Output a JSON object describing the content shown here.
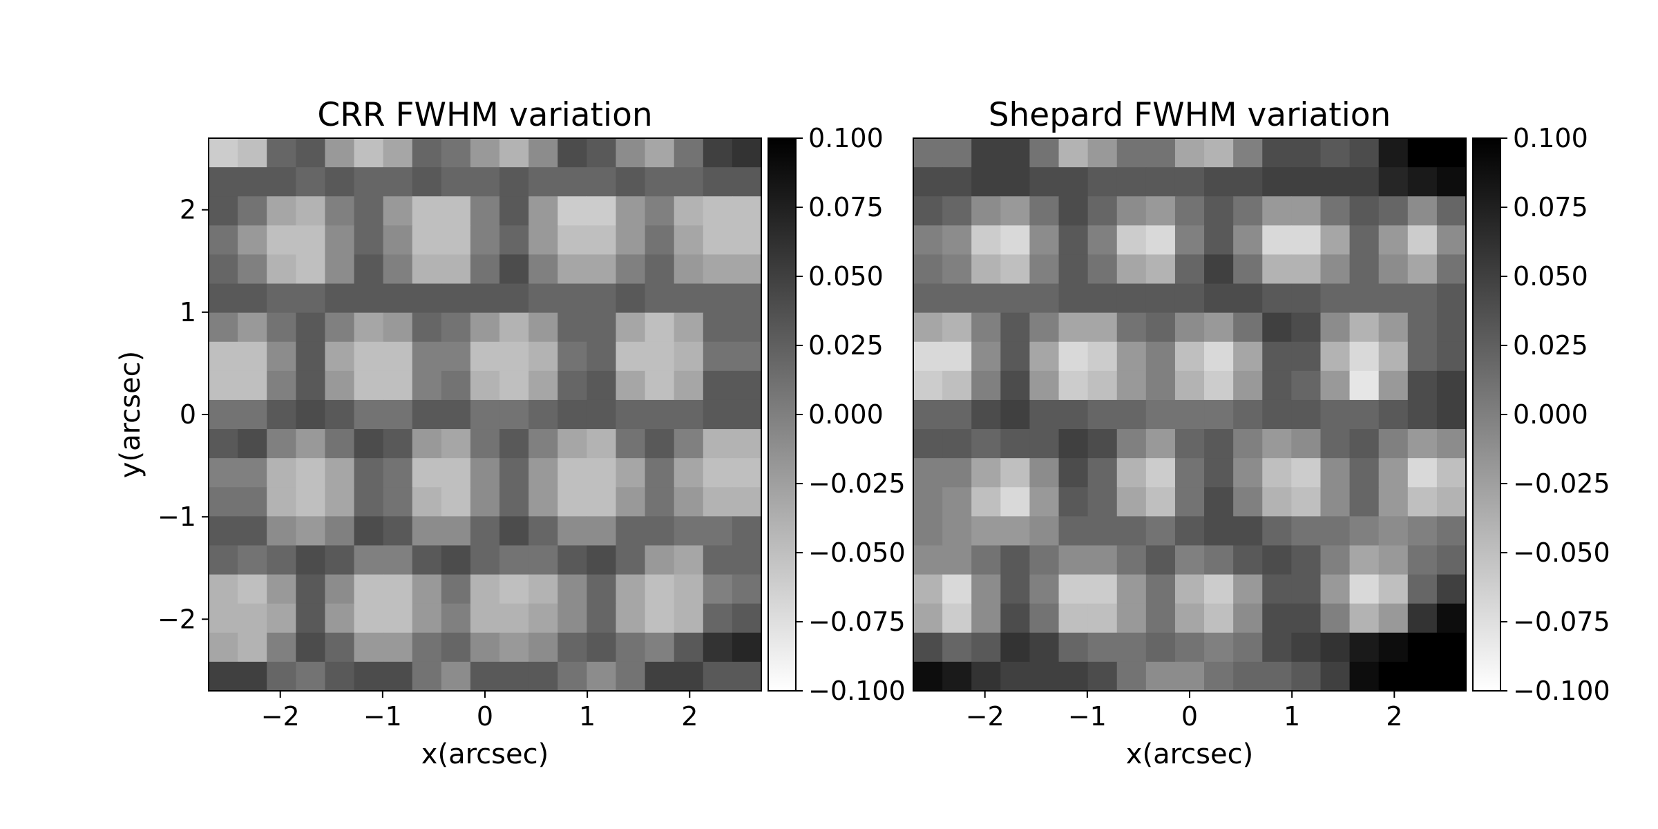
{
  "chart_data": [
    {
      "type": "heatmap",
      "title": "CRR FWHM variation",
      "xlabel": "x(arcsec)",
      "ylabel": "y(arcsec)",
      "xlim": [
        -2.7,
        2.7
      ],
      "ylim": [
        -2.7,
        2.7
      ],
      "xticks": [
        -2,
        -1,
        0,
        1,
        2
      ],
      "yticks": [
        -2,
        -1,
        0,
        1,
        2
      ],
      "xtick_labels": [
        "−2",
        "−1",
        "0",
        "1",
        "2"
      ],
      "ytick_labels": [
        "−2",
        "−1",
        "0",
        "1",
        "2"
      ],
      "colorbar": {
        "cmap": "gray_r",
        "vmin": -0.1,
        "vmax": 0.1,
        "ticks": [
          0.1,
          0.075,
          0.05,
          0.025,
          0.0,
          -0.025,
          -0.05,
          -0.075,
          -0.1
        ],
        "tick_labels": [
          "0.100",
          "0.075",
          "0.050",
          "0.025",
          "0.000",
          "−0.025",
          "−0.050",
          "−0.075",
          "−0.100"
        ]
      },
      "grid_rows_top_to_bottom": [
        [
          -0.06,
          -0.05,
          0.02,
          0.03,
          -0.02,
          -0.05,
          -0.03,
          0.02,
          0.01,
          -0.02,
          -0.04,
          -0.01,
          0.04,
          0.03,
          -0.01,
          -0.03,
          0.01,
          0.05,
          0.06
        ],
        [
          0.03,
          0.03,
          0.03,
          0.02,
          0.03,
          0.02,
          0.02,
          0.03,
          0.02,
          0.02,
          0.03,
          0.02,
          0.02,
          0.02,
          0.03,
          0.02,
          0.02,
          0.03,
          0.03
        ],
        [
          0.03,
          0.01,
          -0.03,
          -0.04,
          0.0,
          0.02,
          -0.02,
          -0.05,
          -0.05,
          0.0,
          0.03,
          -0.02,
          -0.06,
          -0.06,
          -0.02,
          0.0,
          -0.04,
          -0.05,
          -0.05
        ],
        [
          0.01,
          -0.02,
          -0.05,
          -0.05,
          -0.01,
          0.02,
          -0.01,
          -0.05,
          -0.05,
          0.0,
          0.02,
          -0.02,
          -0.05,
          -0.05,
          -0.02,
          0.01,
          -0.03,
          -0.05,
          -0.05
        ],
        [
          0.02,
          0.0,
          -0.04,
          -0.05,
          -0.01,
          0.03,
          0.0,
          -0.04,
          -0.04,
          0.01,
          0.04,
          0.0,
          -0.03,
          -0.03,
          0.0,
          0.02,
          -0.02,
          -0.03,
          -0.03
        ],
        [
          0.03,
          0.03,
          0.02,
          0.02,
          0.03,
          0.03,
          0.03,
          0.03,
          0.03,
          0.03,
          0.03,
          0.02,
          0.02,
          0.02,
          0.03,
          0.02,
          0.02,
          0.02,
          0.02
        ],
        [
          0.0,
          -0.02,
          0.01,
          0.03,
          0.0,
          -0.03,
          -0.02,
          0.02,
          0.01,
          -0.02,
          -0.04,
          -0.02,
          0.02,
          0.02,
          -0.03,
          -0.05,
          -0.03,
          0.02,
          0.02
        ],
        [
          -0.05,
          -0.05,
          -0.01,
          0.03,
          -0.03,
          -0.05,
          -0.05,
          0.0,
          0.0,
          -0.05,
          -0.05,
          -0.04,
          0.01,
          0.02,
          -0.05,
          -0.05,
          -0.04,
          0.01,
          0.01
        ],
        [
          -0.05,
          -0.05,
          0.0,
          0.03,
          -0.02,
          -0.05,
          -0.05,
          0.0,
          0.01,
          -0.04,
          -0.05,
          -0.03,
          0.02,
          0.03,
          -0.03,
          -0.05,
          -0.03,
          0.03,
          0.03
        ],
        [
          0.01,
          0.01,
          0.03,
          0.04,
          0.03,
          0.01,
          0.01,
          0.03,
          0.03,
          0.01,
          0.01,
          0.02,
          0.03,
          0.03,
          0.02,
          0.02,
          0.02,
          0.03,
          0.03
        ],
        [
          0.03,
          0.04,
          0.0,
          -0.02,
          0.01,
          0.04,
          0.03,
          -0.02,
          -0.03,
          0.01,
          0.03,
          0.0,
          -0.03,
          -0.04,
          0.01,
          0.03,
          0.0,
          -0.04,
          -0.04
        ],
        [
          0.0,
          0.0,
          -0.04,
          -0.05,
          -0.03,
          0.02,
          0.01,
          -0.05,
          -0.05,
          -0.01,
          0.02,
          -0.02,
          -0.05,
          -0.05,
          -0.03,
          0.01,
          -0.03,
          -0.05,
          -0.05
        ],
        [
          0.01,
          0.01,
          -0.04,
          -0.05,
          -0.03,
          0.02,
          0.01,
          -0.04,
          -0.05,
          -0.01,
          0.02,
          -0.02,
          -0.05,
          -0.05,
          -0.02,
          0.01,
          -0.02,
          -0.04,
          -0.04
        ],
        [
          0.03,
          0.03,
          -0.01,
          -0.02,
          0.0,
          0.04,
          0.03,
          -0.01,
          -0.01,
          0.02,
          0.04,
          0.02,
          -0.01,
          -0.01,
          0.02,
          0.02,
          0.01,
          0.01,
          0.02
        ],
        [
          0.02,
          0.01,
          0.02,
          0.04,
          0.03,
          0.0,
          0.0,
          0.03,
          0.04,
          0.02,
          0.01,
          0.01,
          0.03,
          0.04,
          0.02,
          -0.02,
          -0.03,
          0.02,
          0.02
        ],
        [
          -0.04,
          -0.05,
          -0.02,
          0.03,
          -0.01,
          -0.05,
          -0.05,
          -0.02,
          0.01,
          -0.04,
          -0.05,
          -0.04,
          -0.01,
          0.02,
          -0.03,
          -0.05,
          -0.04,
          0.0,
          0.01
        ],
        [
          -0.04,
          -0.04,
          -0.03,
          0.03,
          -0.02,
          -0.05,
          -0.05,
          -0.02,
          0.0,
          -0.04,
          -0.04,
          -0.03,
          -0.01,
          0.02,
          -0.03,
          -0.05,
          -0.04,
          0.02,
          0.03
        ],
        [
          -0.03,
          -0.04,
          0.0,
          0.04,
          0.02,
          -0.02,
          -0.02,
          0.01,
          0.02,
          -0.01,
          -0.02,
          -0.01,
          0.02,
          0.03,
          0.01,
          0.0,
          0.03,
          0.06,
          0.07
        ],
        [
          0.05,
          0.05,
          0.02,
          0.01,
          0.03,
          0.04,
          0.04,
          0.01,
          -0.01,
          0.03,
          0.03,
          0.03,
          0.01,
          -0.01,
          0.01,
          0.05,
          0.05,
          0.03,
          0.03
        ]
      ]
    },
    {
      "type": "heatmap",
      "title": "Shepard FWHM variation",
      "xlabel": "x(arcsec)",
      "ylabel": "",
      "xlim": [
        -2.7,
        2.7
      ],
      "ylim": [
        -2.7,
        2.7
      ],
      "xticks": [
        -2,
        -1,
        0,
        1,
        2
      ],
      "xtick_labels": [
        "−2",
        "−1",
        "0",
        "1",
        "2"
      ],
      "colorbar": {
        "cmap": "gray_r",
        "vmin": -0.1,
        "vmax": 0.1,
        "ticks": [
          0.1,
          0.075,
          0.05,
          0.025,
          0.0,
          -0.025,
          -0.05,
          -0.075,
          -0.1
        ],
        "tick_labels": [
          "0.100",
          "0.075",
          "0.050",
          "0.025",
          "0.000",
          "−0.025",
          "−0.050",
          "−0.075",
          "−0.100"
        ]
      },
      "grid_rows_top_to_bottom": [
        [
          0.01,
          0.01,
          0.05,
          0.05,
          0.01,
          -0.04,
          -0.02,
          0.01,
          0.01,
          -0.03,
          -0.04,
          0.0,
          0.04,
          0.04,
          0.03,
          0.04,
          0.08,
          0.1,
          0.1
        ],
        [
          0.04,
          0.04,
          0.05,
          0.05,
          0.04,
          0.04,
          0.03,
          0.03,
          0.03,
          0.03,
          0.04,
          0.04,
          0.05,
          0.05,
          0.05,
          0.05,
          0.07,
          0.08,
          0.09
        ],
        [
          0.03,
          0.02,
          -0.01,
          -0.02,
          0.01,
          0.04,
          0.02,
          -0.01,
          -0.02,
          0.01,
          0.03,
          0.01,
          -0.02,
          -0.02,
          0.01,
          0.03,
          0.02,
          -0.01,
          0.02
        ],
        [
          0.0,
          -0.01,
          -0.06,
          -0.07,
          -0.01,
          0.03,
          0.0,
          -0.06,
          -0.07,
          0.0,
          0.03,
          -0.01,
          -0.07,
          -0.07,
          -0.03,
          0.02,
          -0.02,
          -0.06,
          -0.01
        ],
        [
          0.01,
          0.0,
          -0.04,
          -0.05,
          0.0,
          0.03,
          0.01,
          -0.03,
          -0.04,
          0.02,
          0.05,
          0.01,
          -0.04,
          -0.04,
          -0.01,
          0.02,
          -0.01,
          -0.03,
          0.01
        ],
        [
          0.02,
          0.02,
          0.02,
          0.02,
          0.02,
          0.03,
          0.03,
          0.03,
          0.03,
          0.03,
          0.04,
          0.04,
          0.03,
          0.03,
          0.02,
          0.02,
          0.02,
          0.02,
          0.03
        ],
        [
          -0.03,
          -0.04,
          0.0,
          0.03,
          0.0,
          -0.03,
          -0.03,
          0.01,
          0.02,
          -0.01,
          -0.02,
          0.01,
          0.05,
          0.04,
          -0.01,
          -0.04,
          -0.02,
          0.02,
          0.03
        ],
        [
          -0.07,
          -0.07,
          -0.01,
          0.03,
          -0.03,
          -0.07,
          -0.06,
          -0.02,
          0.0,
          -0.05,
          -0.07,
          -0.03,
          0.03,
          0.03,
          -0.04,
          -0.07,
          -0.04,
          0.02,
          0.03
        ],
        [
          -0.06,
          -0.05,
          0.0,
          0.04,
          -0.02,
          -0.06,
          -0.05,
          -0.02,
          0.0,
          -0.04,
          -0.06,
          -0.02,
          0.03,
          0.02,
          -0.02,
          -0.08,
          -0.02,
          0.04,
          0.05
        ],
        [
          0.02,
          0.02,
          0.04,
          0.05,
          0.03,
          0.03,
          0.02,
          0.02,
          0.01,
          0.01,
          0.01,
          0.02,
          0.03,
          0.03,
          0.02,
          0.02,
          0.03,
          0.04,
          0.05
        ],
        [
          0.03,
          0.03,
          0.02,
          0.03,
          0.03,
          0.05,
          0.04,
          0.0,
          -0.02,
          0.02,
          0.03,
          0.0,
          -0.02,
          -0.01,
          0.02,
          0.03,
          0.0,
          -0.02,
          -0.01
        ],
        [
          0.0,
          0.0,
          -0.03,
          -0.05,
          -0.01,
          0.04,
          0.02,
          -0.04,
          -0.06,
          0.01,
          0.03,
          -0.01,
          -0.05,
          -0.06,
          -0.01,
          0.02,
          -0.02,
          -0.07,
          -0.05
        ],
        [
          0.0,
          -0.01,
          -0.05,
          -0.07,
          -0.02,
          0.03,
          0.02,
          -0.03,
          -0.05,
          0.01,
          0.04,
          0.0,
          -0.04,
          -0.05,
          -0.01,
          0.02,
          -0.02,
          -0.05,
          -0.04
        ],
        [
          0.0,
          -0.01,
          -0.02,
          -0.02,
          -0.01,
          0.02,
          0.02,
          0.02,
          0.01,
          0.03,
          0.04,
          0.04,
          0.02,
          0.01,
          0.01,
          0.0,
          -0.01,
          0.0,
          0.01
        ],
        [
          -0.01,
          -0.01,
          0.01,
          0.03,
          0.01,
          -0.01,
          -0.01,
          0.01,
          0.03,
          0.0,
          0.01,
          0.03,
          0.04,
          0.03,
          0.0,
          -0.03,
          -0.02,
          0.01,
          0.02
        ],
        [
          -0.04,
          -0.07,
          -0.01,
          0.03,
          0.0,
          -0.06,
          -0.06,
          -0.02,
          0.01,
          -0.04,
          -0.06,
          -0.02,
          0.03,
          0.03,
          -0.02,
          -0.07,
          -0.05,
          0.02,
          0.05
        ],
        [
          -0.03,
          -0.06,
          -0.01,
          0.04,
          0.01,
          -0.05,
          -0.05,
          -0.02,
          0.01,
          -0.03,
          -0.05,
          -0.01,
          0.04,
          0.04,
          0.0,
          -0.04,
          -0.02,
          0.06,
          0.09
        ],
        [
          0.04,
          0.02,
          0.03,
          0.06,
          0.05,
          0.02,
          0.01,
          0.01,
          0.02,
          0.01,
          0.0,
          0.01,
          0.04,
          0.05,
          0.06,
          0.08,
          0.09,
          0.1,
          0.1
        ],
        [
          0.09,
          0.08,
          0.06,
          0.05,
          0.05,
          0.05,
          0.04,
          0.01,
          -0.01,
          -0.01,
          0.01,
          0.02,
          0.02,
          0.03,
          0.05,
          0.09,
          0.1,
          0.1,
          0.1
        ]
      ]
    }
  ]
}
